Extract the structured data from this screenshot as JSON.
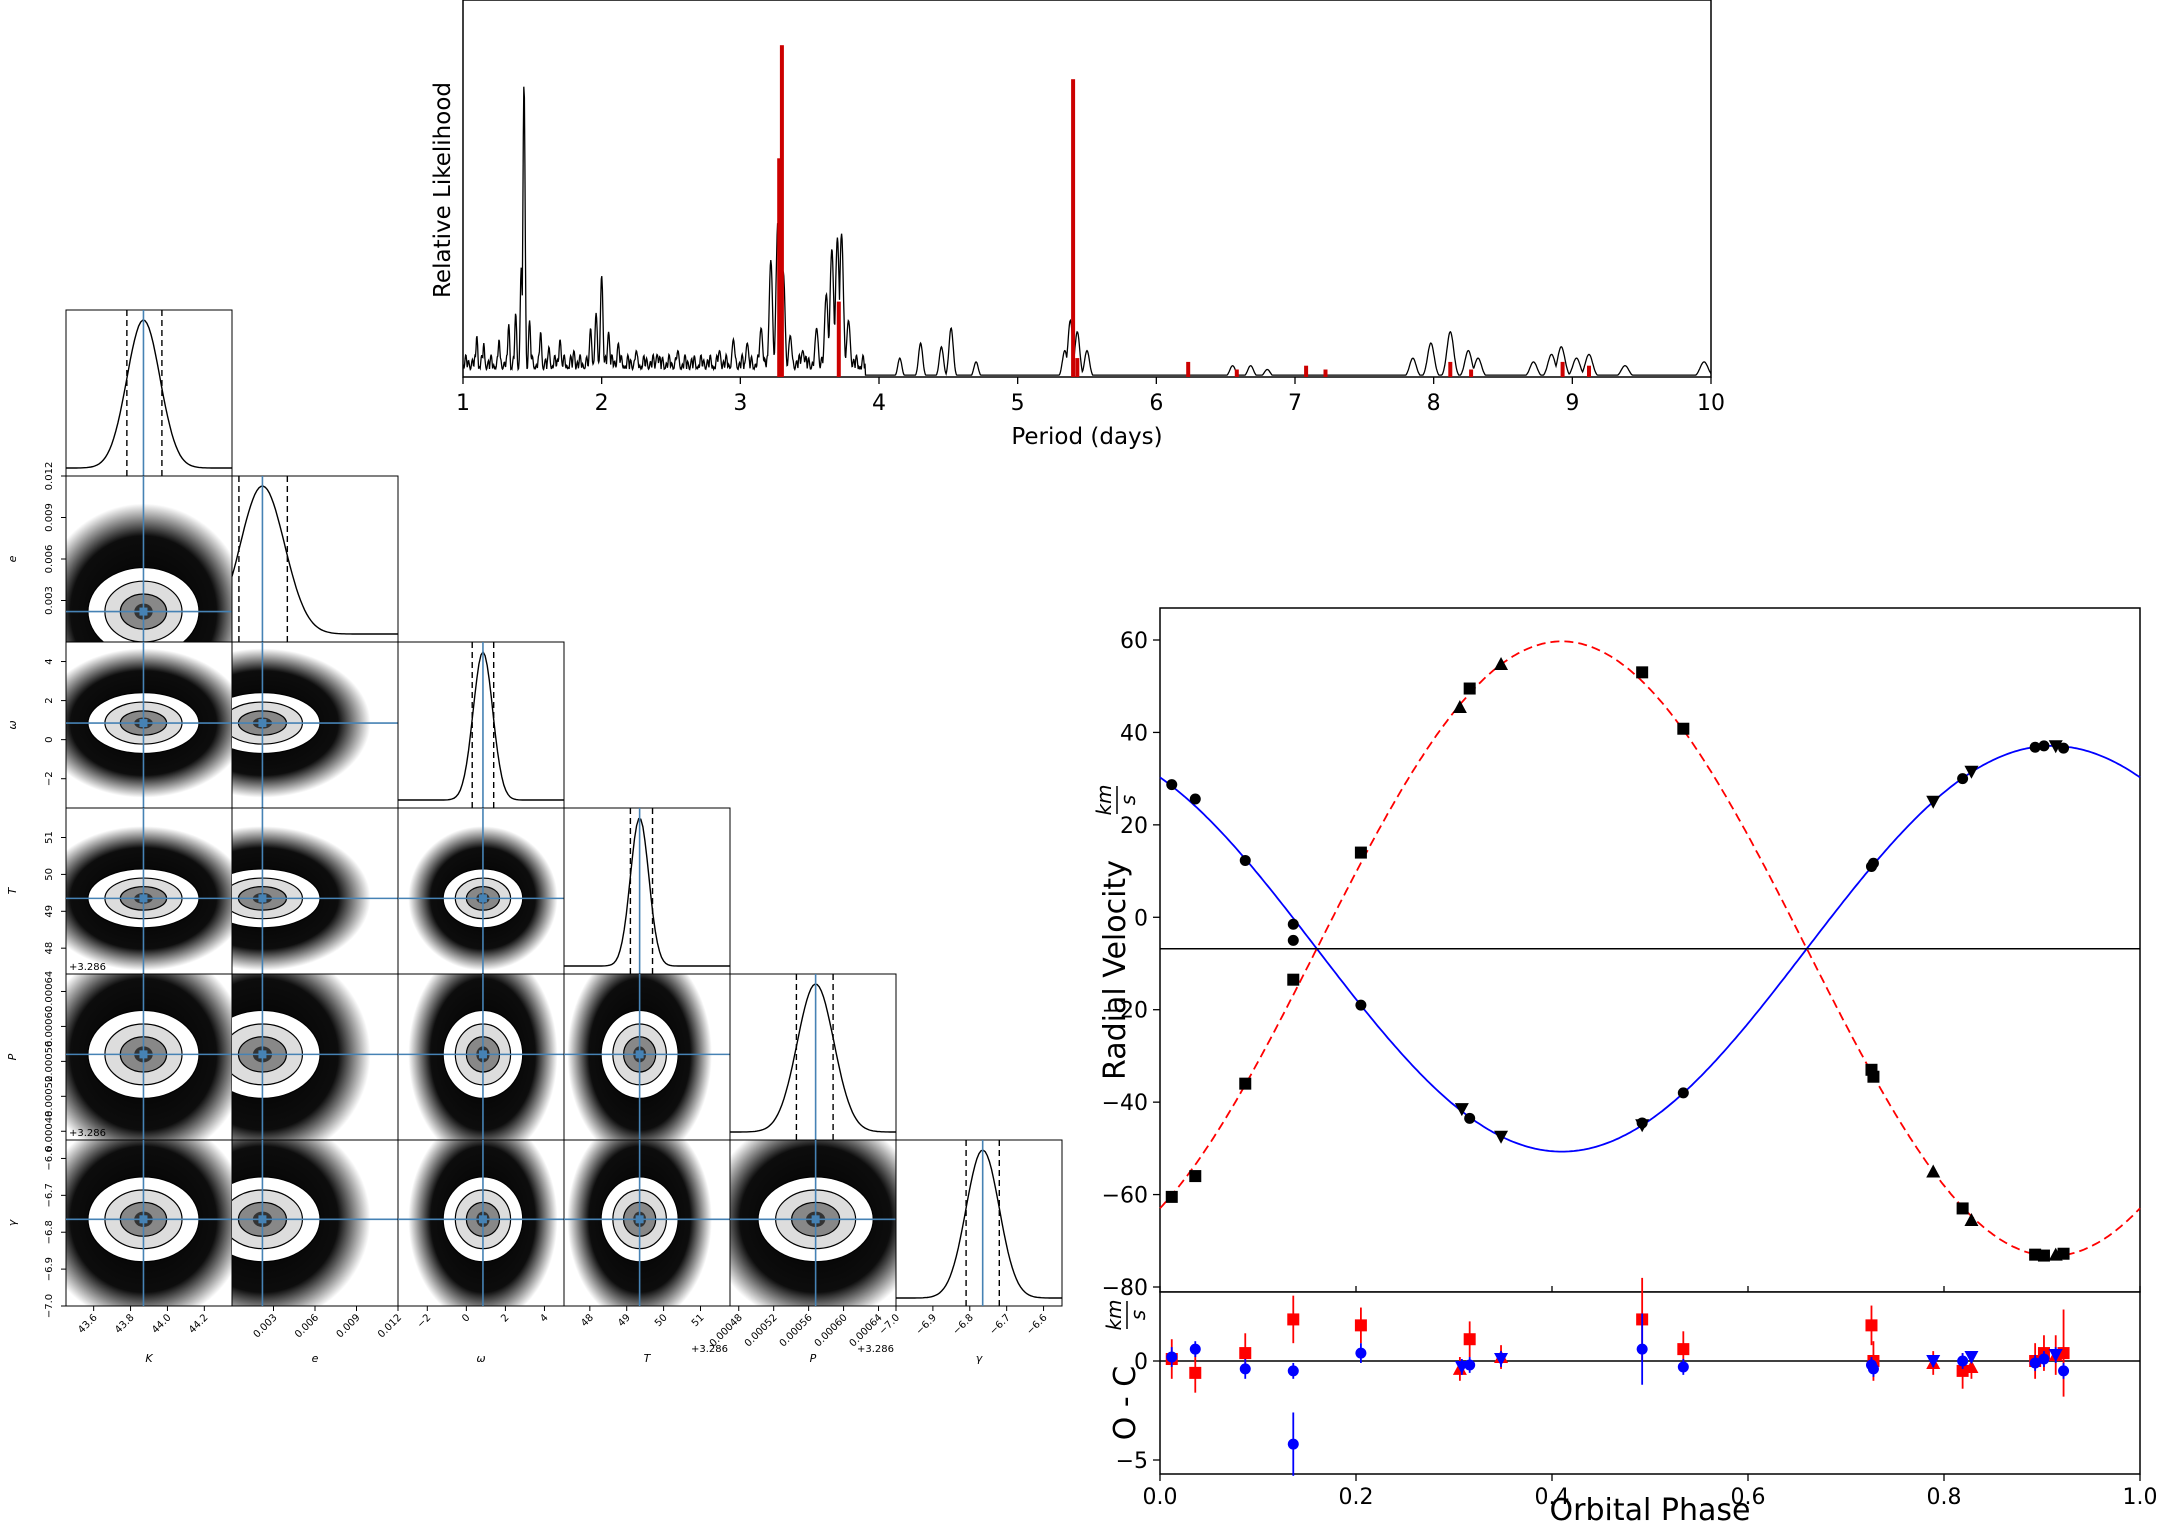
{
  "chart_data": [
    {
      "type": "line",
      "panel": "periodogram",
      "xlabel": "Period (days)",
      "ylabel": "Relative Likelihood",
      "xlim": [
        1,
        10
      ],
      "ylim": [
        0,
        1.0
      ],
      "xticks": [
        "1",
        "2",
        "3",
        "4",
        "5",
        "6",
        "7",
        "8",
        "9",
        "10"
      ],
      "series": [
        {
          "color": "#000000",
          "peaks": [
            [
              1.1,
              0.11
            ],
            [
              1.15,
              0.09
            ],
            [
              1.26,
              0.1
            ],
            [
              1.33,
              0.14
            ],
            [
              1.38,
              0.17
            ],
            [
              1.42,
              0.29
            ],
            [
              1.44,
              0.78
            ],
            [
              1.48,
              0.15
            ],
            [
              1.56,
              0.12
            ],
            [
              1.62,
              0.08
            ],
            [
              1.7,
              0.1
            ],
            [
              1.8,
              0.07
            ],
            [
              1.92,
              0.13
            ],
            [
              1.96,
              0.17
            ],
            [
              2.0,
              0.27
            ],
            [
              2.05,
              0.12
            ],
            [
              2.12,
              0.09
            ],
            [
              2.25,
              0.07
            ],
            [
              2.4,
              0.06
            ],
            [
              2.55,
              0.07
            ],
            [
              2.85,
              0.07
            ],
            [
              2.95,
              0.1
            ],
            [
              3.05,
              0.09
            ],
            [
              3.15,
              0.13
            ],
            [
              3.22,
              0.31
            ],
            [
              3.27,
              0.41
            ],
            [
              3.31,
              0.28
            ],
            [
              3.36,
              0.11
            ],
            [
              3.45,
              0.07
            ],
            [
              3.55,
              0.13
            ],
            [
              3.62,
              0.22
            ],
            [
              3.66,
              0.34
            ],
            [
              3.7,
              0.37
            ],
            [
              3.73,
              0.38
            ],
            [
              3.78,
              0.15
            ],
            [
              4.15,
              0.05
            ],
            [
              4.3,
              0.09
            ],
            [
              4.45,
              0.08
            ],
            [
              4.52,
              0.13
            ],
            [
              4.7,
              0.04
            ],
            [
              5.34,
              0.07
            ],
            [
              5.38,
              0.15
            ],
            [
              5.43,
              0.12
            ],
            [
              5.5,
              0.07
            ],
            [
              6.55,
              0.03
            ],
            [
              6.68,
              0.03
            ],
            [
              6.8,
              0.02
            ],
            [
              7.85,
              0.05
            ],
            [
              7.98,
              0.09
            ],
            [
              8.12,
              0.12
            ],
            [
              8.25,
              0.07
            ],
            [
              8.32,
              0.05
            ],
            [
              8.72,
              0.04
            ],
            [
              8.85,
              0.06
            ],
            [
              8.92,
              0.08
            ],
            [
              9.03,
              0.05
            ],
            [
              9.12,
              0.06
            ],
            [
              9.38,
              0.03
            ],
            [
              9.95,
              0.04
            ]
          ]
        },
        {
          "color": "#cc0000",
          "bars": [
            [
              3.3,
              0.88
            ],
            [
              3.28,
              0.58
            ],
            [
              3.71,
              0.2
            ],
            [
              5.4,
              0.79
            ],
            [
              5.43,
              0.05
            ],
            [
              6.23,
              0.04
            ],
            [
              6.58,
              0.02
            ],
            [
              7.08,
              0.03
            ],
            [
              7.22,
              0.02
            ],
            [
              8.12,
              0.04
            ],
            [
              8.27,
              0.02
            ],
            [
              8.93,
              0.04
            ],
            [
              9.12,
              0.03
            ]
          ]
        }
      ]
    },
    {
      "type": "scatter",
      "panel": "radial-velocity",
      "xlabel": "Orbital Phase",
      "ylabel": "Radial Velocity",
      "ylabel_frac_num": "km",
      "ylabel_frac_den": "s",
      "xlim": [
        0.0,
        1.0
      ],
      "ylim": [
        -81,
        66
      ],
      "xticks": [
        "0.0",
        "0.2",
        "0.4",
        "0.6",
        "0.8",
        "1.0"
      ],
      "yticks": [
        "60",
        "40",
        "20",
        "0",
        "−20",
        "−40",
        "−60",
        "−80"
      ],
      "systemic_velocity": -6.8,
      "primary": {
        "K": 43.9,
        "phi0": 0.41,
        "color": "#0000ff",
        "linestyle": "solid",
        "points": [
          [
            0.012,
            28.7,
            "o"
          ],
          [
            0.036,
            25.6,
            "o"
          ],
          [
            0.087,
            12.3,
            "o"
          ],
          [
            0.136,
            -1.5,
            "o"
          ],
          [
            0.136,
            -5.0,
            "o"
          ],
          [
            0.205,
            -19.0,
            "o"
          ],
          [
            0.308,
            -41.5,
            "v"
          ],
          [
            0.316,
            -43.5,
            "o"
          ],
          [
            0.348,
            -47.5,
            "v"
          ],
          [
            0.492,
            -44.5,
            "o"
          ],
          [
            0.492,
            -45.0,
            "v"
          ],
          [
            0.534,
            -38.0,
            "o"
          ],
          [
            0.726,
            11.0,
            "o"
          ],
          [
            0.728,
            11.7,
            "o"
          ],
          [
            0.789,
            25.0,
            "v"
          ],
          [
            0.819,
            30.0,
            "o"
          ],
          [
            0.828,
            31.5,
            "v"
          ],
          [
            0.893,
            36.8,
            "o"
          ],
          [
            0.902,
            37.1,
            "o"
          ],
          [
            0.914,
            37.0,
            "v"
          ],
          [
            0.922,
            36.6,
            "o"
          ]
        ]
      },
      "secondary": {
        "K": 66.5,
        "phi0": 0.41,
        "color": "#ff0000",
        "linestyle": "dashed",
        "points": [
          [
            0.012,
            -60.5,
            "s"
          ],
          [
            0.036,
            -56.0,
            "s"
          ],
          [
            0.087,
            -36.0,
            "s"
          ],
          [
            0.136,
            -13.5,
            "s"
          ],
          [
            0.205,
            14.0,
            "s"
          ],
          [
            0.306,
            45.5,
            "^"
          ],
          [
            0.316,
            49.5,
            "s"
          ],
          [
            0.348,
            54.8,
            "^"
          ],
          [
            0.492,
            53.0,
            "s"
          ],
          [
            0.534,
            40.8,
            "s"
          ],
          [
            0.726,
            -33.0,
            "s"
          ],
          [
            0.728,
            -34.5,
            "s"
          ],
          [
            0.789,
            -55.0,
            "^"
          ],
          [
            0.819,
            -63.0,
            "s"
          ],
          [
            0.828,
            -65.5,
            "^"
          ],
          [
            0.893,
            -73.0,
            "s"
          ],
          [
            0.902,
            -73.2,
            "s"
          ],
          [
            0.914,
            -73.0,
            "^"
          ],
          [
            0.922,
            -72.8,
            "s"
          ]
        ]
      }
    },
    {
      "type": "scatter",
      "panel": "residuals",
      "xlabel": "Orbital Phase",
      "ylabel": "O - C",
      "ylabel_frac_num": "km",
      "ylabel_frac_den": "s",
      "xlim": [
        0.0,
        1.0
      ],
      "ylim": [
        -6.5,
        4.2
      ],
      "xticks": [
        "0.0",
        "0.2",
        "0.4",
        "0.6",
        "0.8",
        "1.0"
      ],
      "yticks": [
        "0",
        "−5"
      ],
      "primary_residuals": [
        [
          0.012,
          0.2,
          0.5,
          "o"
        ],
        [
          0.036,
          0.6,
          0.4,
          "o"
        ],
        [
          0.087,
          -0.4,
          0.5,
          "o"
        ],
        [
          0.136,
          -0.5,
          0.4,
          "o"
        ],
        [
          0.136,
          -4.2,
          1.6,
          "o"
        ],
        [
          0.205,
          0.4,
          0.5,
          "o"
        ],
        [
          0.308,
          -0.3,
          0.4,
          "v"
        ],
        [
          0.316,
          -0.2,
          0.4,
          "o"
        ],
        [
          0.348,
          0.1,
          0.4,
          "v"
        ],
        [
          0.492,
          0.6,
          1.8,
          "o"
        ],
        [
          0.534,
          -0.3,
          0.4,
          "o"
        ],
        [
          0.726,
          -0.2,
          0.4,
          "o"
        ],
        [
          0.728,
          -0.4,
          0.4,
          "o"
        ],
        [
          0.789,
          0.0,
          0.3,
          "v"
        ],
        [
          0.819,
          0.0,
          0.4,
          "o"
        ],
        [
          0.828,
          0.2,
          0.3,
          "v"
        ],
        [
          0.893,
          -0.1,
          0.4,
          "o"
        ],
        [
          0.902,
          0.1,
          0.4,
          "o"
        ],
        [
          0.914,
          0.3,
          0.4,
          "v"
        ],
        [
          0.922,
          -0.5,
          0.4,
          "o"
        ]
      ],
      "secondary_residuals": [
        [
          0.012,
          0.1,
          1.0,
          "s"
        ],
        [
          0.036,
          -0.6,
          1.0,
          "s"
        ],
        [
          0.087,
          0.4,
          1.0,
          "s"
        ],
        [
          0.136,
          2.1,
          1.2,
          "s"
        ],
        [
          0.205,
          1.8,
          0.9,
          "s"
        ],
        [
          0.306,
          -0.4,
          0.6,
          "^"
        ],
        [
          0.316,
          1.1,
          0.9,
          "s"
        ],
        [
          0.348,
          0.2,
          0.6,
          "^"
        ],
        [
          0.492,
          2.1,
          2.1,
          "s"
        ],
        [
          0.534,
          0.6,
          0.9,
          "s"
        ],
        [
          0.726,
          1.8,
          1.0,
          "s"
        ],
        [
          0.728,
          0.0,
          1.0,
          "s"
        ],
        [
          0.789,
          -0.1,
          0.6,
          "^"
        ],
        [
          0.819,
          -0.5,
          0.9,
          "s"
        ],
        [
          0.828,
          -0.3,
          0.6,
          "^"
        ],
        [
          0.893,
          0.0,
          0.9,
          "s"
        ],
        [
          0.902,
          0.4,
          0.9,
          "s"
        ],
        [
          0.914,
          0.3,
          1.0,
          "^"
        ],
        [
          0.922,
          0.4,
          2.2,
          "s"
        ]
      ]
    },
    {
      "type": "corner",
      "panel": "posterior-corner",
      "parameters": [
        {
          "name": "K",
          "range": [
            43.45,
            44.35
          ],
          "ticks": [
            "43.6",
            "43.8",
            "44.0",
            "44.2"
          ],
          "tick_values": [
            43.6,
            43.8,
            44.0,
            44.2
          ],
          "median": 43.87,
          "q16": 43.78,
          "q84": 43.97,
          "sigma": 0.09,
          "offset": ""
        },
        {
          "name": "e",
          "range": [
            0.0,
            0.012
          ],
          "ticks": [
            "0.003",
            "0.006",
            "0.009",
            "0.012"
          ],
          "tick_values": [
            0.003,
            0.006,
            0.009,
            0.012
          ],
          "median": 0.0022,
          "q16": 0.0005,
          "q84": 0.004,
          "sigma": 0.0016,
          "offset": ""
        },
        {
          "name": "ω",
          "range": [
            -3.5,
            5.0
          ],
          "ticks": [
            "−2",
            "0",
            "2",
            "4"
          ],
          "tick_values": [
            -2,
            0,
            2,
            4
          ],
          "median": 0.85,
          "q16": 0.3,
          "q84": 1.4,
          "sigma": 0.5,
          "offset": ""
        },
        {
          "name": "T",
          "range": [
            47.3,
            51.8
          ],
          "ticks": [
            "48",
            "49",
            "50",
            "51"
          ],
          "tick_values": [
            48,
            49,
            50,
            51
          ],
          "median": 49.35,
          "q16": 49.1,
          "q84": 49.7,
          "sigma": 0.25,
          "offset": "+3.286"
        },
        {
          "name": "P",
          "range": [
            0.00047,
            0.00066
          ],
          "ticks": [
            "0.00048",
            "0.00052",
            "0.00056",
            "0.00060",
            "0.00064"
          ],
          "tick_values": [
            0.00048,
            0.00052,
            0.00056,
            0.0006,
            0.00064
          ],
          "median": 0.000568,
          "q16": 0.000546,
          "q84": 0.000588,
          "sigma": 2.1e-05,
          "offset": "+3.286"
        },
        {
          "name": "γ",
          "range": [
            -7.0,
            -6.55
          ],
          "ticks": [
            "−7.0",
            "−6.9",
            "−6.8",
            "−6.7",
            "−6.6"
          ],
          "tick_values": [
            -7.0,
            -6.9,
            -6.8,
            -6.7,
            -6.6
          ],
          "median": -6.765,
          "q16": -6.81,
          "q84": -6.72,
          "sigma": 0.045,
          "offset": ""
        }
      ],
      "truth_color": "#4682b4"
    }
  ]
}
